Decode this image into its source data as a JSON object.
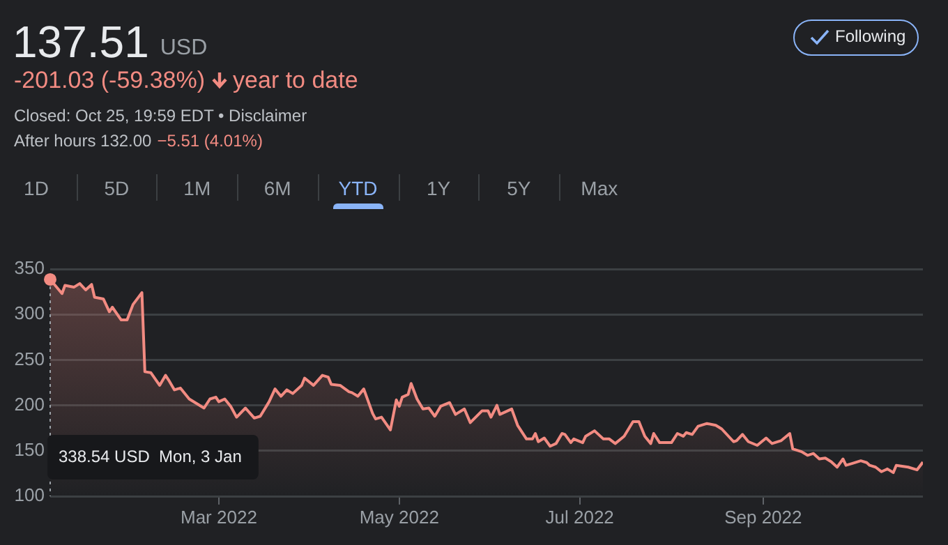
{
  "chart_data": {
    "type": "area",
    "title": "137.51",
    "subtitle": "USD",
    "annotations": [
      "-201.03 (-59.38%)",
      "year to date",
      "Closed: Oct 25, 19:59 EDT • Disclaimer",
      "After hours 132.00",
      "−5.51 (4.01%)",
      "1D",
      "5D",
      "1M",
      "6M",
      "YTD",
      "1Y",
      "5Y",
      "Max",
      "Following",
      "338.54 USD  Mon, 3 Jan"
    ],
    "x": [
      "2022-01-03",
      "2022-01-07",
      "2022-01-08",
      "2022-01-11",
      "2022-01-13",
      "2022-01-15",
      "2022-01-17",
      "2022-01-18",
      "2022-01-21",
      "2022-01-23",
      "2022-01-24",
      "2022-01-27",
      "2022-01-29",
      "2022-01-31",
      "2022-02-03",
      "2022-02-04",
      "2022-02-06",
      "2022-02-09",
      "2022-02-11",
      "2022-02-12",
      "2022-02-14",
      "2022-02-16",
      "2022-02-19",
      "2022-02-24",
      "2022-02-26",
      "2022-02-28",
      "2022-03-01",
      "2022-03-03",
      "2022-03-05",
      "2022-03-07",
      "2022-03-10",
      "2022-03-13",
      "2022-03-15",
      "2022-03-18",
      "2022-03-20",
      "2022-03-22",
      "2022-03-24",
      "2022-03-26",
      "2022-03-29",
      "2022-03-30",
      "2022-04-02",
      "2022-04-05",
      "2022-04-07",
      "2022-04-08",
      "2022-04-11",
      "2022-04-14",
      "2022-04-15",
      "2022-04-17",
      "2022-04-19",
      "2022-04-22",
      "2022-04-23",
      "2022-04-25",
      "2022-04-28",
      "2022-04-30",
      "2022-05-01",
      "2022-05-02",
      "2022-05-04",
      "2022-05-05",
      "2022-05-07",
      "2022-05-09",
      "2022-05-11",
      "2022-05-13",
      "2022-05-15",
      "2022-05-18",
      "2022-05-20",
      "2022-05-23",
      "2022-05-25",
      "2022-05-29",
      "2022-05-31",
      "2022-06-01",
      "2022-06-03",
      "2022-06-04",
      "2022-06-08",
      "2022-06-10",
      "2022-06-13",
      "2022-06-15",
      "2022-06-16",
      "2022-06-17",
      "2022-06-19",
      "2022-06-21",
      "2022-06-23",
      "2022-06-25",
      "2022-06-26",
      "2022-06-28",
      "2022-06-29",
      "2022-07-02",
      "2022-07-03",
      "2022-07-06",
      "2022-07-09",
      "2022-07-11",
      "2022-07-13",
      "2022-07-16",
      "2022-07-19",
      "2022-07-21",
      "2022-07-23",
      "2022-07-25",
      "2022-07-26",
      "2022-07-28",
      "2022-08-01",
      "2022-08-03",
      "2022-08-05",
      "2022-08-06",
      "2022-08-08",
      "2022-08-10",
      "2022-08-13",
      "2022-08-16",
      "2022-08-18",
      "2022-08-22",
      "2022-08-23",
      "2022-08-25",
      "2022-08-27",
      "2022-08-30",
      "2022-09-02",
      "2022-09-04",
      "2022-09-07",
      "2022-09-10",
      "2022-09-11",
      "2022-09-14",
      "2022-09-16",
      "2022-09-18",
      "2022-09-20",
      "2022-09-22",
      "2022-09-24",
      "2022-09-26",
      "2022-09-28",
      "2022-09-29",
      "2022-10-01",
      "2022-10-04",
      "2022-10-06",
      "2022-10-07",
      "2022-10-09",
      "2022-10-11",
      "2022-10-13",
      "2022-10-15",
      "2022-10-16",
      "2022-10-20",
      "2022-10-23",
      "2022-10-25"
    ],
    "values": [
      338.54,
      323,
      332,
      330,
      334,
      327,
      333,
      319,
      317,
      303,
      308,
      294,
      294,
      311,
      324,
      237,
      236,
      222,
      233,
      228,
      217,
      219,
      207,
      197,
      207,
      209,
      204,
      207,
      199,
      187,
      197,
      186,
      188,
      204,
      218,
      210,
      217,
      213,
      222,
      230,
      222,
      233,
      231,
      223,
      222,
      215,
      214,
      210,
      218,
      191,
      185,
      187,
      173,
      206,
      199,
      209,
      212,
      224,
      207,
      196,
      197,
      188,
      199,
      203,
      190,
      196,
      181,
      194,
      194,
      187,
      200,
      190,
      196,
      178,
      163,
      163,
      169,
      160,
      164,
      155,
      158,
      169,
      168,
      159,
      163,
      159,
      166,
      172,
      163,
      163,
      158,
      166,
      182,
      182,
      166,
      158,
      169,
      159,
      159,
      169,
      166,
      170,
      168,
      177,
      180,
      178,
      174,
      160,
      161,
      168,
      160,
      156,
      164,
      158,
      161,
      169,
      152,
      149,
      145,
      147,
      141,
      142,
      138,
      132,
      141,
      134,
      136,
      139,
      137,
      134,
      132,
      127,
      130,
      126,
      134,
      132,
      129,
      137.51
    ],
    "color": "#f28b82",
    "xlim": [
      "2022-01-03",
      "2022-10-25"
    ],
    "xticks": [
      {
        "value": "2022-03-01",
        "label": "Mar 2022"
      },
      {
        "value": "2022-05-01",
        "label": "May 2022"
      },
      {
        "value": "2022-07-01",
        "label": "Jul 2022"
      },
      {
        "value": "2022-09-01",
        "label": "Sep 2022"
      }
    ],
    "ylim": [
      100,
      350
    ],
    "yticks": [
      100,
      150,
      200,
      250,
      300,
      350
    ],
    "grid": "y"
  }
}
